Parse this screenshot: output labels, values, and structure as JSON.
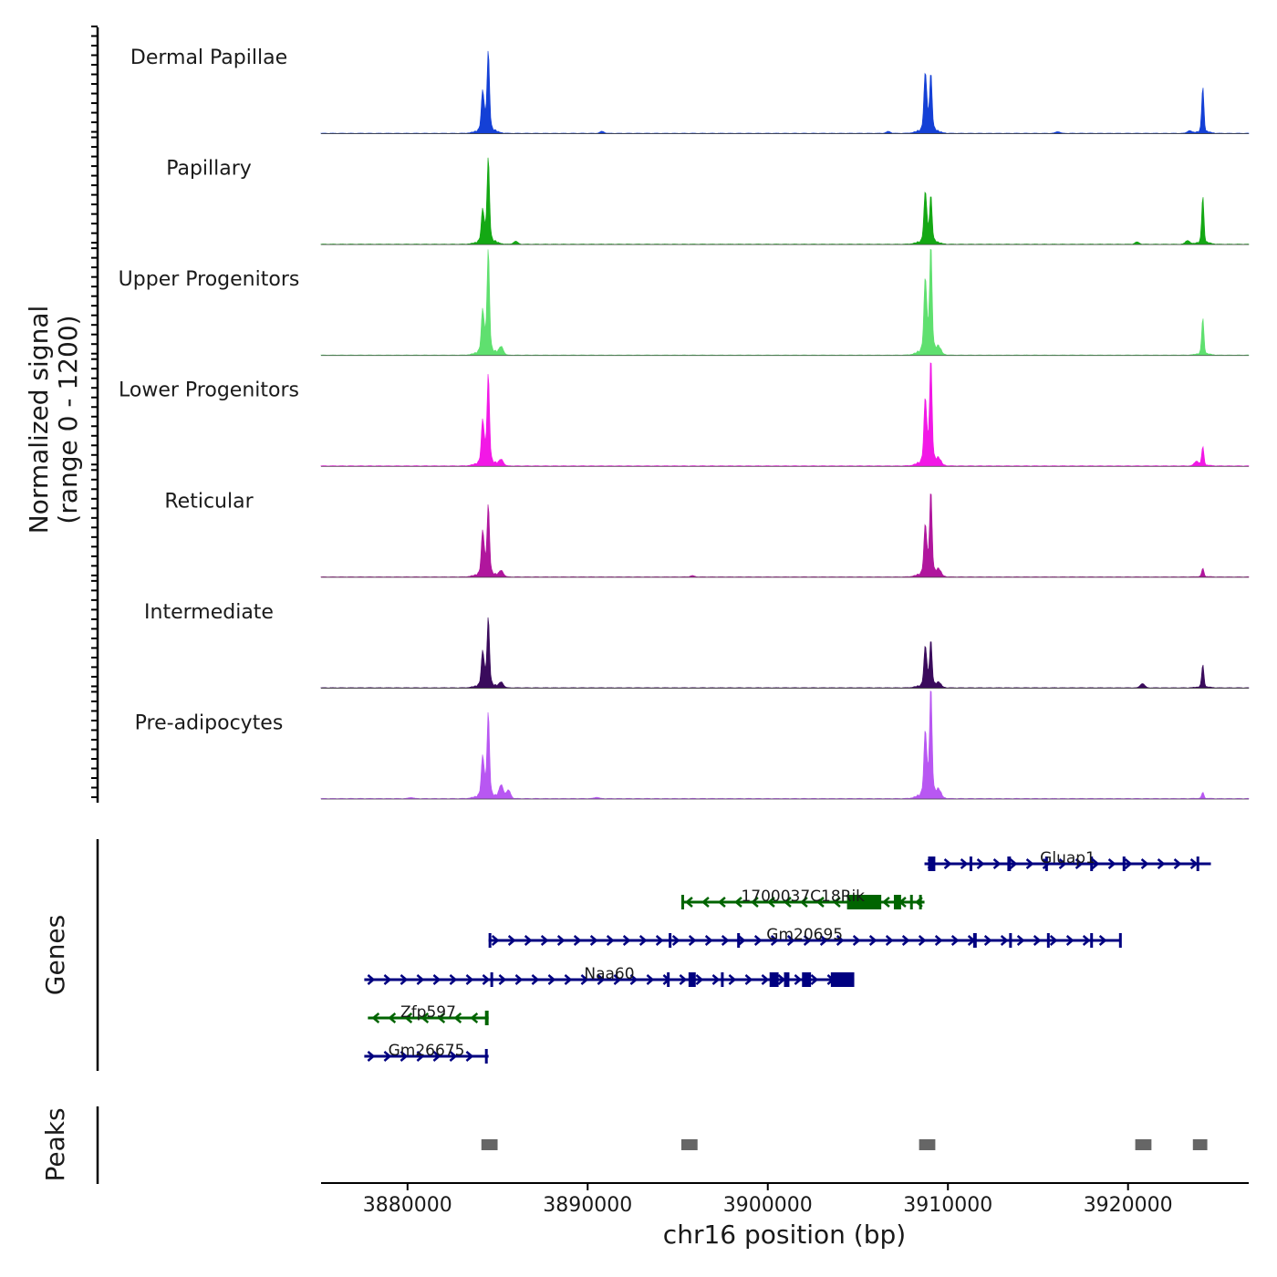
{
  "chart_data": {
    "type": "area",
    "title": "",
    "ylabel": "Normalized signal\n(range 0 - 1200)",
    "y_range_text": "(range 0 - 1200)",
    "ylim": [
      0,
      1200
    ],
    "xlabel": "chr16 position (bp)",
    "xlim": [
      3875200,
      3926700
    ],
    "x_ticks": [
      3880000,
      3890000,
      3900000,
      3910000,
      3920000
    ],
    "x_tick_labels": [
      "3880000",
      "3890000",
      "3900000",
      "3910000",
      "3920000"
    ],
    "tracks": [
      {
        "name": "Dermal Papillae",
        "color": "#1440d6",
        "peaks": [
          [
            3884180,
            520,
            80
          ],
          [
            3884480,
            1030,
            70
          ],
          [
            3908750,
            760,
            80
          ],
          [
            3909050,
            740,
            70
          ],
          [
            3924150,
            600,
            60
          ]
        ],
        "background": 10,
        "noise_bumps": [
          [
            3890800,
            30
          ],
          [
            3906700,
            35
          ],
          [
            3916100,
            25
          ],
          [
            3923400,
            40
          ]
        ]
      },
      {
        "name": "Papillary",
        "color": "#14a814",
        "peaks": [
          [
            3884180,
            420,
            80
          ],
          [
            3884480,
            1090,
            70
          ],
          [
            3908750,
            660,
            80
          ],
          [
            3909050,
            600,
            70
          ],
          [
            3924150,
            620,
            60
          ]
        ],
        "background": 10,
        "noise_bumps": [
          [
            3920500,
            30
          ],
          [
            3923300,
            60
          ],
          [
            3886000,
            40
          ]
        ]
      },
      {
        "name": "Upper Progenitors",
        "color": "#5fe06f",
        "peaks": [
          [
            3884180,
            550,
            80
          ],
          [
            3884480,
            1330,
            70
          ],
          [
            3908750,
            950,
            80
          ],
          [
            3909050,
            1370,
            70
          ],
          [
            3924150,
            480,
            60
          ]
        ],
        "background": 10,
        "noise_bumps": [
          [
            3885200,
            120
          ],
          [
            3909500,
            80
          ]
        ]
      },
      {
        "name": "Lower Progenitors",
        "color": "#f218e6",
        "peaks": [
          [
            3884180,
            560,
            80
          ],
          [
            3884480,
            1150,
            70
          ],
          [
            3908750,
            830,
            80
          ],
          [
            3909050,
            1340,
            70
          ],
          [
            3924150,
            250,
            60
          ]
        ],
        "background": 12,
        "noise_bumps": [
          [
            3885200,
            90
          ],
          [
            3909500,
            70
          ],
          [
            3923800,
            60
          ]
        ]
      },
      {
        "name": "Reticular",
        "color": "#b0169d",
        "peaks": [
          [
            3884180,
            570,
            80
          ],
          [
            3884480,
            900,
            70
          ],
          [
            3908750,
            640,
            80
          ],
          [
            3909050,
            1080,
            70
          ],
          [
            3924150,
            110,
            60
          ]
        ],
        "background": 10,
        "noise_bumps": [
          [
            3895800,
            25
          ],
          [
            3885200,
            90
          ],
          [
            3909500,
            80
          ]
        ]
      },
      {
        "name": "Intermediate",
        "color": "#3a0b5c",
        "peaks": [
          [
            3884180,
            450,
            80
          ],
          [
            3884480,
            880,
            70
          ],
          [
            3908750,
            520,
            80
          ],
          [
            3909050,
            590,
            70
          ],
          [
            3924150,
            300,
            60
          ]
        ],
        "background": 10,
        "noise_bumps": [
          [
            3920800,
            60
          ],
          [
            3885200,
            80
          ],
          [
            3909500,
            60
          ]
        ]
      },
      {
        "name": "Pre-adipocytes",
        "color": "#b857f2",
        "peaks": [
          [
            3884180,
            520,
            80
          ],
          [
            3884480,
            1080,
            70
          ],
          [
            3908750,
            830,
            80
          ],
          [
            3909050,
            1400,
            70
          ],
          [
            3924150,
            80,
            60
          ]
        ],
        "background": 12,
        "noise_bumps": [
          [
            3880200,
            25
          ],
          [
            3885200,
            200
          ],
          [
            3885600,
            120
          ],
          [
            3909500,
            90
          ],
          [
            3890500,
            20
          ]
        ]
      }
    ],
    "genes_track_label": "Genes",
    "genes": [
      {
        "name": "Gluap1",
        "row": 0,
        "strand": "+",
        "color": "#000080",
        "start": 3908700,
        "end": 3924600,
        "exons": [
          [
            3908900,
            3909300
          ],
          [
            3911200,
            3911350
          ],
          [
            3913300,
            3913500
          ],
          [
            3915400,
            3915500
          ],
          [
            3917900,
            3918000
          ],
          [
            3919700,
            3919750
          ],
          [
            3923800,
            3923850
          ]
        ]
      },
      {
        "name": "1700037C18Rik",
        "row": 1,
        "strand": "-",
        "color": "#006400",
        "start": 3895200,
        "end": 3908700,
        "exons": [
          [
            3895200,
            3895350
          ],
          [
            3904400,
            3906300
          ],
          [
            3907000,
            3907400
          ],
          [
            3907900,
            3908000
          ],
          [
            3908400,
            3908500
          ]
        ]
      },
      {
        "name": "Gm20695",
        "row": 2,
        "strand": "+",
        "color": "#000080",
        "start": 3884500,
        "end": 3919600,
        "exons": [
          [
            3884500,
            3884650
          ],
          [
            3894500,
            3894600
          ],
          [
            3898300,
            3898400
          ],
          [
            3911400,
            3911600
          ],
          [
            3913400,
            3913500
          ],
          [
            3915500,
            3915650
          ],
          [
            3917900,
            3918000
          ],
          [
            3919500,
            3919600
          ]
        ]
      },
      {
        "name": "Naa60",
        "row": 3,
        "strand": "+",
        "color": "#000080",
        "start": 3877600,
        "end": 3904800,
        "exons": [
          [
            3884600,
            3884700
          ],
          [
            3894400,
            3894500
          ],
          [
            3895600,
            3896000
          ],
          [
            3897400,
            3897500
          ],
          [
            3900100,
            3900600
          ],
          [
            3900900,
            3901200
          ],
          [
            3901900,
            3902400
          ],
          [
            3903500,
            3904800
          ]
        ]
      },
      {
        "name": "Zfp597",
        "row": 4,
        "strand": "-",
        "color": "#006400",
        "start": 3877800,
        "end": 3884500,
        "exons": [
          [
            3884300,
            3884500
          ]
        ]
      },
      {
        "name": "Gm26675",
        "row": 5,
        "strand": "+",
        "color": "#000080",
        "start": 3877600,
        "end": 3884500,
        "exons": [
          [
            3884300,
            3884450
          ]
        ]
      }
    ],
    "peaks_track_label": "Peaks",
    "peak_regions": [
      [
        3884100,
        3885000
      ],
      [
        3895200,
        3896100
      ],
      [
        3908400,
        3909300
      ],
      [
        3920400,
        3921300
      ],
      [
        3923600,
        3924400
      ]
    ],
    "peak_color": "#666666"
  }
}
